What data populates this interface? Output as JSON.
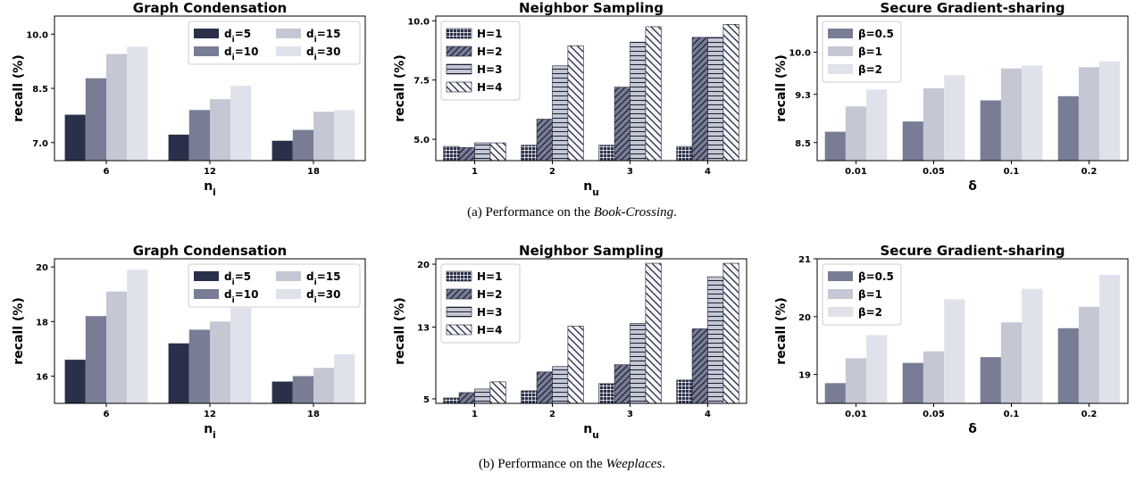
{
  "colors": {
    "d5": "#2a3049",
    "d10": "#787d95",
    "d15": "#c4c7d4",
    "d30": "#e0e2eb",
    "h_face": "#2a3049",
    "beta05": "#787d95",
    "beta1": "#c4c7d4",
    "beta2": "#e0e2eb"
  },
  "captions": [
    {
      "prefix": "(a)  Performance on the ",
      "dataset": "Book-Crossing",
      "suffix": "."
    },
    {
      "prefix": "(b)  Performance on the ",
      "dataset": "Weeplaces",
      "suffix": "."
    }
  ],
  "chart_data": [
    {
      "id": "a1",
      "type": "bar",
      "title": "Graph Condensation",
      "xlabel_main": "n",
      "xlabel_sub": "i",
      "ylabel": "recall (%)",
      "categories": [
        "6",
        "12",
        "18"
      ],
      "ylim": [
        6.5,
        10.5
      ],
      "yticks": [
        "7.0",
        "8.5",
        "10.0"
      ],
      "legend": {
        "position": "upper-right",
        "cols": 2
      },
      "series": [
        {
          "name": "d_i=5",
          "label_main": "d",
          "label_sub": "i",
          "label_rest": "=5",
          "color": "#2a3049",
          "values": [
            7.77,
            7.22,
            7.05
          ]
        },
        {
          "name": "d_i=10",
          "label_main": "d",
          "label_sub": "i",
          "label_rest": "=10",
          "color": "#787d95",
          "values": [
            8.78,
            7.9,
            7.35
          ]
        },
        {
          "name": "d_i=15",
          "label_main": "d",
          "label_sub": "i",
          "label_rest": "=15",
          "color": "#c4c7d4",
          "values": [
            9.45,
            8.2,
            7.85
          ]
        },
        {
          "name": "d_i=30",
          "label_main": "d",
          "label_sub": "i",
          "label_rest": "=30",
          "color": "#e0e2eb",
          "values": [
            9.65,
            8.57,
            7.9
          ]
        }
      ]
    },
    {
      "id": "a2",
      "type": "bar",
      "title": "Neighbor Sampling",
      "xlabel_main": "n",
      "xlabel_sub": "u",
      "ylabel": "recall (%)",
      "categories": [
        "1",
        "2",
        "3",
        "4"
      ],
      "ylim": [
        4.1,
        10.2
      ],
      "yticks": [
        "5.0",
        "7.5",
        "10.0"
      ],
      "legend": {
        "position": "upper-left",
        "cols": 1
      },
      "series": [
        {
          "name": "H=1",
          "label_main": "H=1",
          "hatch": "grid",
          "color": "#2a3049",
          "values": [
            4.7,
            4.75,
            4.75,
            4.7
          ]
        },
        {
          "name": "H=2",
          "label_main": "H=2",
          "hatch": "diag",
          "color": "#787d95",
          "values": [
            4.65,
            5.85,
            7.2,
            9.3
          ]
        },
        {
          "name": "H=3",
          "label_main": "H=3",
          "hatch": "horiz",
          "color": "#c4c7d4",
          "values": [
            4.85,
            8.1,
            9.1,
            9.3
          ]
        },
        {
          "name": "H=4",
          "label_main": "H=4",
          "hatch": "backdiag",
          "color": "#ffffff",
          "values": [
            4.85,
            8.95,
            9.75,
            9.85
          ]
        }
      ]
    },
    {
      "id": "a3",
      "type": "bar",
      "title": "Secure Gradient-sharing",
      "xlabel_main": "δ",
      "xlabel_sub": "",
      "ylabel": "recall (%)",
      "categories": [
        "0.01",
        "0.05",
        "0.1",
        "0.2"
      ],
      "ylim": [
        8.2,
        10.6
      ],
      "yticks": [
        "8.5",
        "9.3",
        "10.0"
      ],
      "legend": {
        "position": "upper-left",
        "cols": 1
      },
      "series": [
        {
          "name": "β=0.5",
          "label_main": "β=0.5",
          "color": "#787d95",
          "values": [
            8.68,
            8.85,
            9.2,
            9.27
          ]
        },
        {
          "name": "β=1",
          "label_main": "β=1",
          "color": "#c4c7d4",
          "values": [
            9.1,
            9.4,
            9.73,
            9.75
          ]
        },
        {
          "name": "β=2",
          "label_main": "β=2",
          "color": "#e0e2eb",
          "values": [
            9.38,
            9.62,
            9.78,
            9.85
          ]
        }
      ]
    },
    {
      "id": "b1",
      "type": "bar",
      "title": "Graph Condensation",
      "xlabel_main": "n",
      "xlabel_sub": "i",
      "ylabel": "recall (%)",
      "categories": [
        "6",
        "12",
        "18"
      ],
      "ylim": [
        15.0,
        20.3
      ],
      "yticks": [
        "16",
        "18",
        "20"
      ],
      "legend": {
        "position": "upper-right",
        "cols": 2
      },
      "series": [
        {
          "name": "d_i=5",
          "label_main": "d",
          "label_sub": "i",
          "label_rest": "=5",
          "color": "#2a3049",
          "values": [
            16.6,
            17.2,
            15.8
          ]
        },
        {
          "name": "d_i=10",
          "label_main": "d",
          "label_sub": "i",
          "label_rest": "=10",
          "color": "#787d95",
          "values": [
            18.2,
            17.7,
            16.0
          ]
        },
        {
          "name": "d_i=15",
          "label_main": "d",
          "label_sub": "i",
          "label_rest": "=15",
          "color": "#c4c7d4",
          "values": [
            19.1,
            18.0,
            16.3
          ]
        },
        {
          "name": "d_i=30",
          "label_main": "d",
          "label_sub": "i",
          "label_rest": "=30",
          "color": "#e0e2eb",
          "values": [
            19.9,
            18.5,
            16.8
          ]
        }
      ]
    },
    {
      "id": "b2",
      "type": "bar",
      "title": "Neighbor Sampling",
      "xlabel_main": "n",
      "xlabel_sub": "u",
      "ylabel": "recall (%)",
      "categories": [
        "1",
        "2",
        "3",
        "4"
      ],
      "ylim": [
        4.5,
        20.6
      ],
      "yticks": [
        "5",
        "13",
        "20"
      ],
      "legend": {
        "position": "upper-left",
        "cols": 1
      },
      "series": [
        {
          "name": "H=1",
          "label_main": "H=1",
          "hatch": "grid",
          "color": "#2a3049",
          "values": [
            5.1,
            5.9,
            6.7,
            7.1
          ]
        },
        {
          "name": "H=2",
          "label_main": "H=2",
          "hatch": "diag",
          "color": "#787d95",
          "values": [
            5.7,
            8.0,
            8.8,
            12.8
          ]
        },
        {
          "name": "H=3",
          "label_main": "H=3",
          "hatch": "horiz",
          "color": "#c4c7d4",
          "values": [
            6.1,
            8.6,
            13.4,
            18.6
          ]
        },
        {
          "name": "H=4",
          "label_main": "H=4",
          "hatch": "backdiag",
          "color": "#ffffff",
          "values": [
            6.9,
            13.1,
            20.1,
            20.1
          ]
        }
      ]
    },
    {
      "id": "b3",
      "type": "bar",
      "title": "Secure Gradient-sharing",
      "xlabel_main": "δ",
      "xlabel_sub": "",
      "ylabel": "recall (%)",
      "categories": [
        "0.01",
        "0.05",
        "0.1",
        "0.2"
      ],
      "ylim": [
        18.5,
        21.0
      ],
      "yticks": [
        "19",
        "20",
        "21"
      ],
      "legend": {
        "position": "upper-left",
        "cols": 1
      },
      "series": [
        {
          "name": "β=0.5",
          "label_main": "β=0.5",
          "color": "#787d95",
          "values": [
            18.85,
            19.2,
            19.3,
            19.8
          ]
        },
        {
          "name": "β=1",
          "label_main": "β=1",
          "color": "#c4c7d4",
          "values": [
            19.28,
            19.4,
            19.9,
            20.17
          ]
        },
        {
          "name": "β=2",
          "label_main": "β=2",
          "color": "#e0e2eb",
          "values": [
            19.68,
            20.3,
            20.48,
            20.72
          ]
        }
      ]
    }
  ]
}
